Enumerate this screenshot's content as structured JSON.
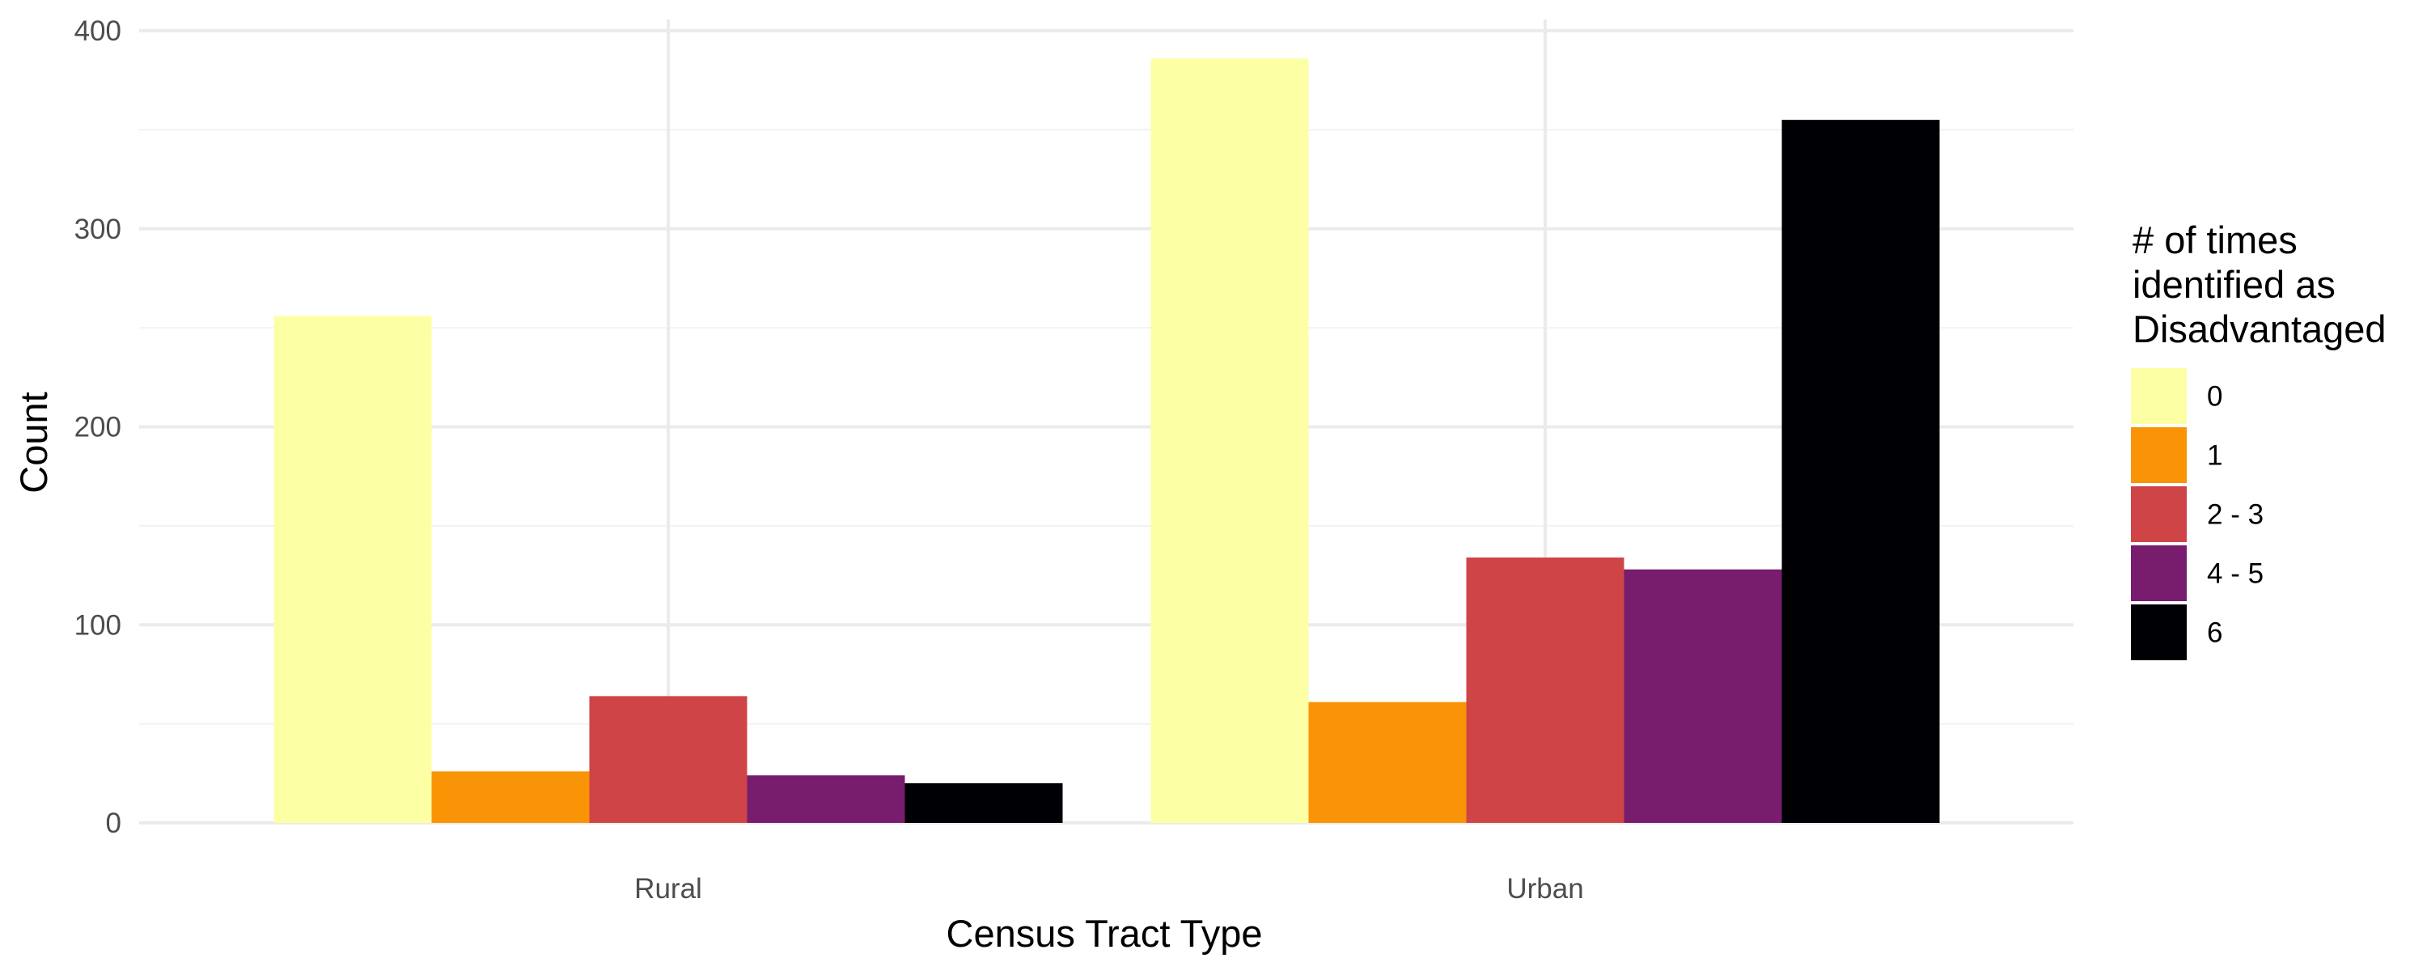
{
  "chart_data": {
    "type": "bar",
    "title": "",
    "xlabel": "Census Tract Type",
    "ylabel": "Count",
    "categories": [
      "Rural",
      "Urban"
    ],
    "ylim": [
      0,
      400
    ],
    "yticks": [
      0,
      100,
      200,
      300,
      400
    ],
    "grid": true,
    "legend": {
      "title_lines": [
        "# of times",
        "identified as",
        "Disadvantaged"
      ],
      "position": "right"
    },
    "series": [
      {
        "name": "0",
        "color": "#FCFFA4",
        "values": [
          256,
          386
        ]
      },
      {
        "name": "1",
        "color": "#FA9407",
        "values": [
          26,
          61
        ]
      },
      {
        "name": "2 - 3",
        "color": "#CF4446",
        "values": [
          64,
          134
        ]
      },
      {
        "name": "4 - 5",
        "color": "#781C6D",
        "values": [
          24,
          128
        ]
      },
      {
        "name": "6",
        "color": "#000004",
        "values": [
          20,
          355
        ]
      }
    ]
  }
}
